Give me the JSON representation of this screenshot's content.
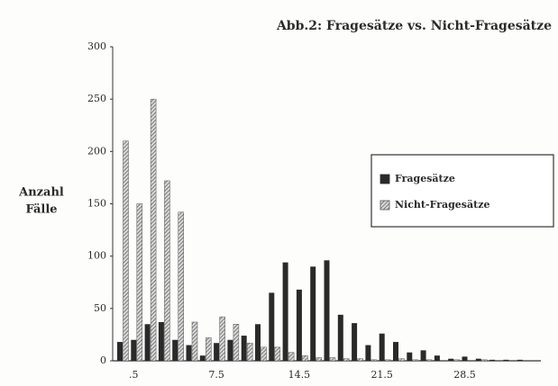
{
  "chart_data": {
    "type": "bar",
    "title": "Abb.2: Fragesätze vs. Nicht-Fragesätze",
    "y_label_lines": [
      "Anzahl",
      "Fälle"
    ],
    "categories": [
      null,
      ".5",
      null,
      null,
      null,
      null,
      null,
      "7.5",
      null,
      null,
      null,
      null,
      null,
      "14.5",
      null,
      null,
      null,
      null,
      null,
      "21.5",
      null,
      null,
      null,
      null,
      null,
      "28.5",
      null,
      null,
      null,
      null
    ],
    "series": [
      {
        "name": "Fragesätze",
        "color": "#2a2a2a",
        "pattern": "solid",
        "values": [
          18,
          20,
          35,
          37,
          20,
          15,
          5,
          17,
          20,
          24,
          35,
          65,
          94,
          68,
          90,
          96,
          44,
          36,
          15,
          26,
          18,
          8,
          10,
          5,
          2,
          4,
          2,
          1,
          1,
          1
        ]
      },
      {
        "name": "Nicht-Fragesätze",
        "color": "#555555",
        "pattern": "hatch",
        "values": [
          210,
          150,
          250,
          172,
          142,
          37,
          22,
          42,
          35,
          17,
          13,
          13,
          8,
          5,
          3,
          3,
          2,
          2,
          1,
          1,
          2,
          1,
          1,
          0,
          1,
          0,
          1,
          0,
          0,
          0
        ]
      }
    ],
    "ylim": [
      0,
      300
    ],
    "yticks": [
      0,
      50,
      100,
      150,
      200,
      250,
      300
    ],
    "legend": "right"
  }
}
